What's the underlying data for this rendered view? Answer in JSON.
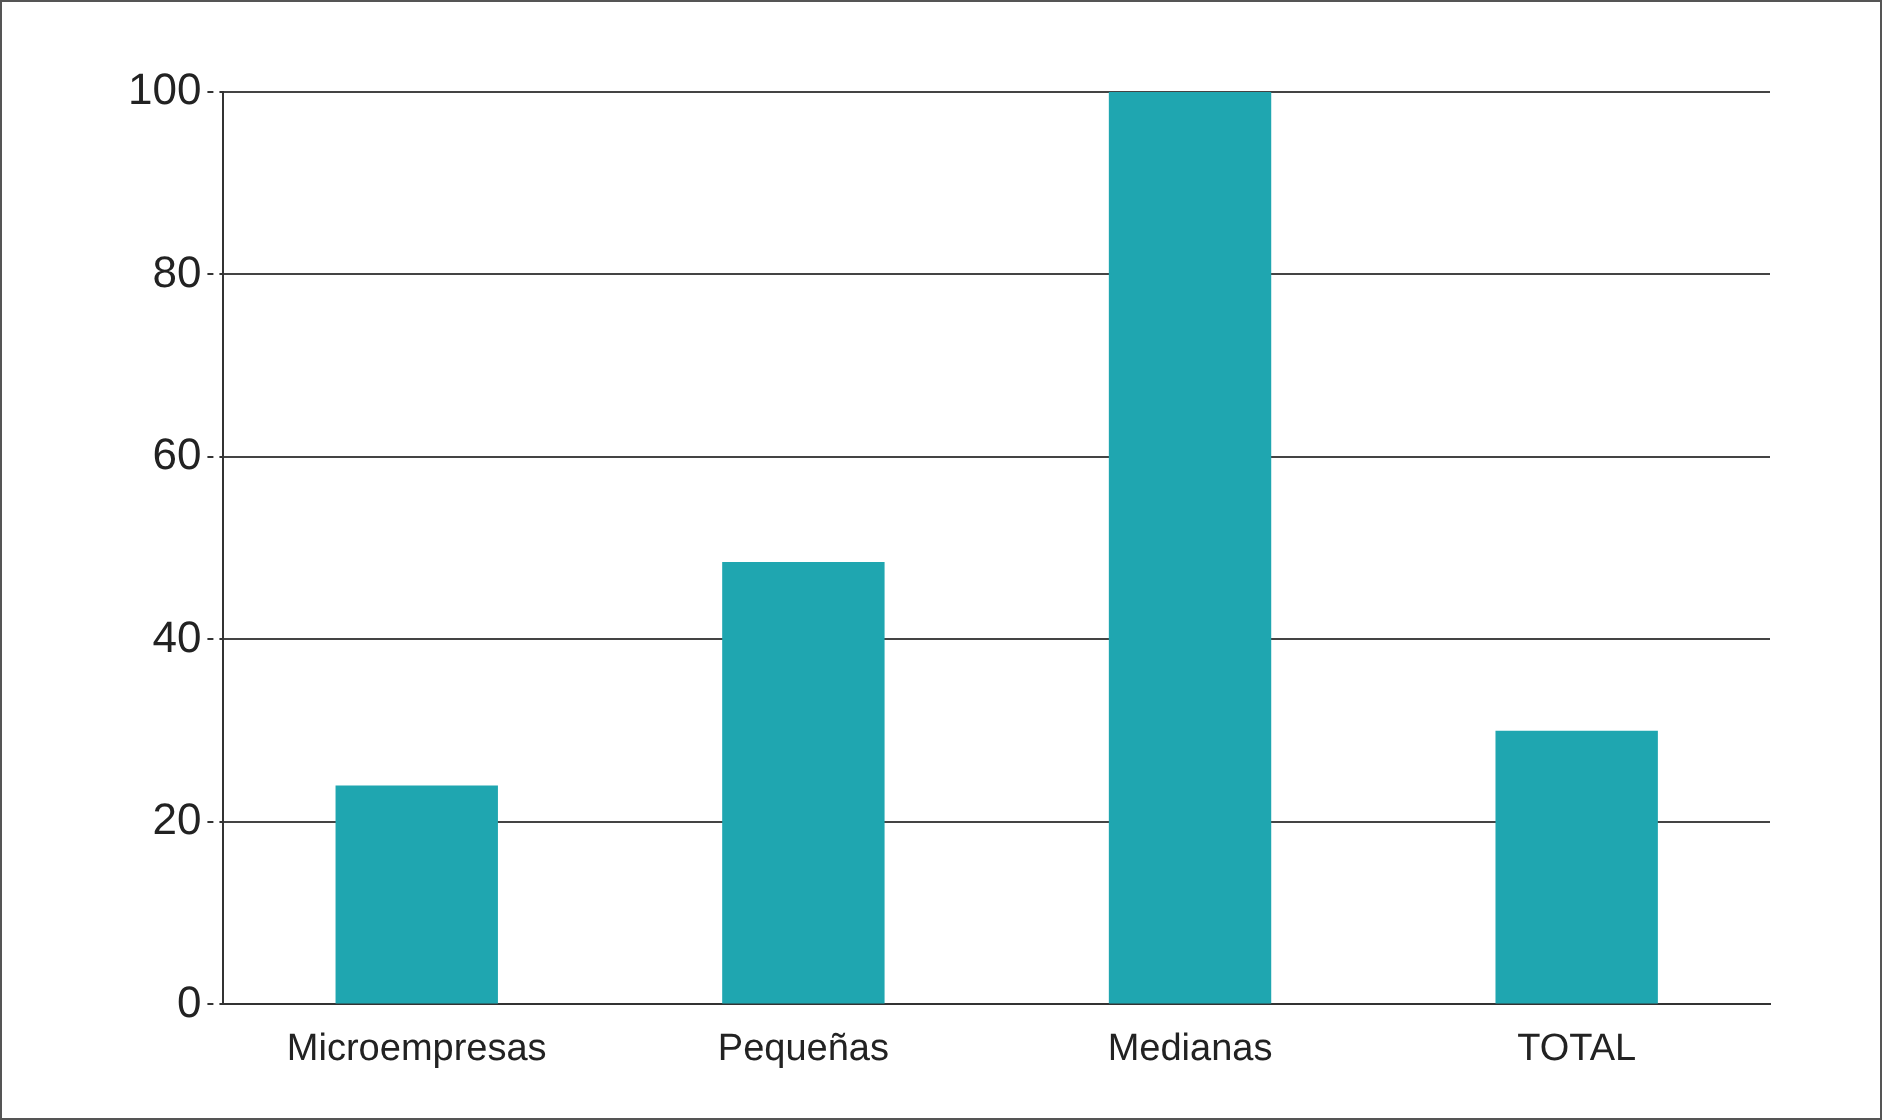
{
  "chart_data": {
    "type": "bar",
    "categories": [
      "Microempresas",
      "Pequeñas",
      "Medianas",
      "TOTAL"
    ],
    "values": [
      24,
      48.5,
      100,
      30
    ],
    "color": "#1fa6b0",
    "ylim": [
      0,
      100
    ],
    "yticks": [
      0,
      20,
      40,
      60,
      80,
      100
    ],
    "grid": "y"
  }
}
